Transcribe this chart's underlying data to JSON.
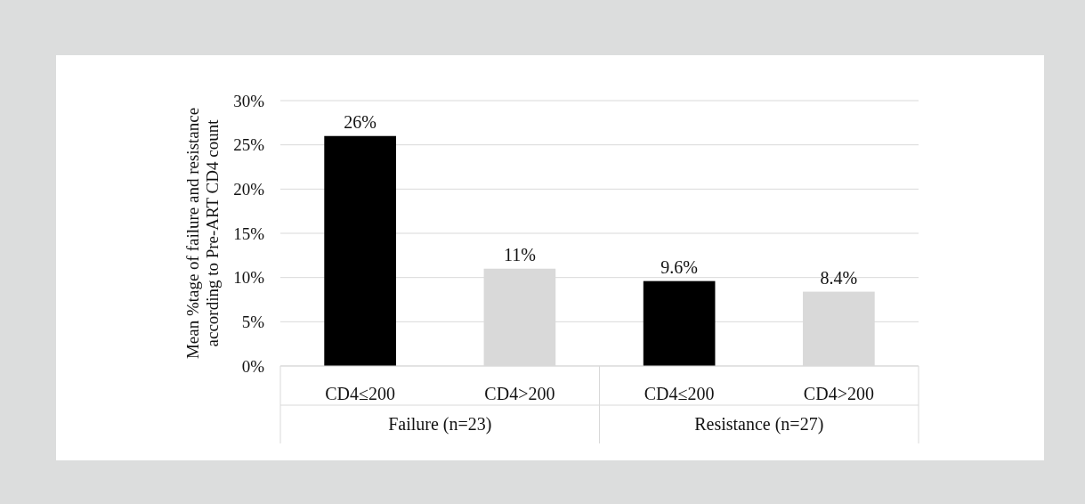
{
  "chart_data": {
    "type": "bar",
    "ylabel": "Mean %tage of failure and resistance according to Pre-ART CD4 count",
    "categories": [
      "CD4≤200",
      "CD4>200",
      "CD4≤200",
      "CD4>200"
    ],
    "values": [
      26,
      11,
      9.6,
      8.4
    ],
    "colors": [
      "#000000",
      "#d9d9d9",
      "#000000",
      "#d9d9d9"
    ],
    "value_labels": [
      "26%",
      "11%",
      "9.6%",
      "8.4%"
    ],
    "annotations": [
      "Failure  (n=23)",
      "Resistance (n=27)"
    ],
    "ylim": [
      0,
      30
    ],
    "yticks": [
      {
        "value": 0,
        "label": "0%"
      },
      {
        "value": 5,
        "label": "5%"
      },
      {
        "value": 10,
        "label": "10%"
      },
      {
        "value": 15,
        "label": "15%"
      },
      {
        "value": 20,
        "label": "20%"
      },
      {
        "value": 25,
        "label": "25%"
      },
      {
        "value": 30,
        "label": "30%"
      }
    ],
    "grid": "y"
  }
}
